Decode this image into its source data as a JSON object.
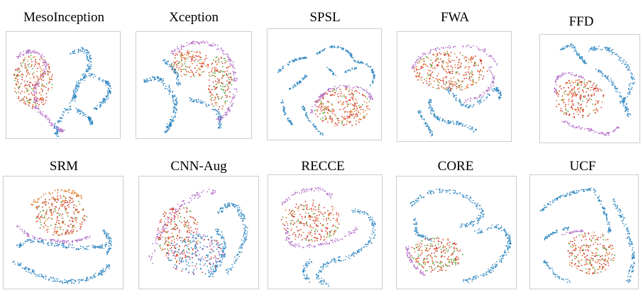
{
  "figure": {
    "panels": [
      {
        "title": "MesoInception"
      },
      {
        "title": "Xception"
      },
      {
        "title": "SPSL"
      },
      {
        "title": "FWA"
      },
      {
        "title": "FFD"
      },
      {
        "title": "SRM"
      },
      {
        "title": "CNN-Aug"
      },
      {
        "title": "RECCE"
      },
      {
        "title": "CORE"
      },
      {
        "title": "UCF"
      }
    ],
    "colors": {
      "blue": "#2e86c1",
      "purple": "#b46fc9",
      "red": "#d33a2c",
      "orange": "#e07b28",
      "green": "#52a63b",
      "frame": "#cfcfcf"
    }
  }
}
